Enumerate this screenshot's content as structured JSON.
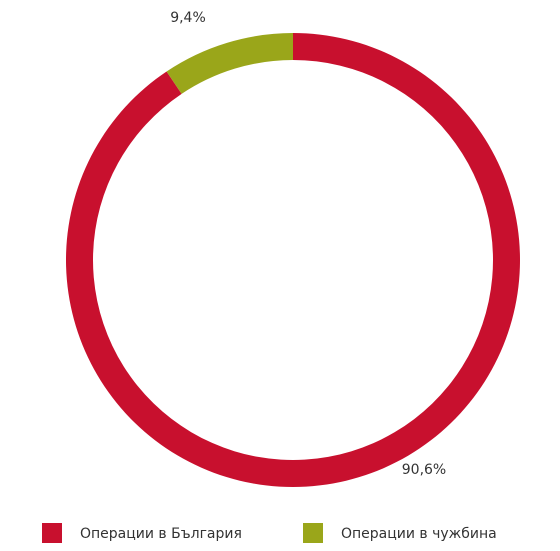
{
  "chart_data": {
    "type": "donut",
    "categories": [
      "Операции в България",
      "Операции в чужбина"
    ],
    "values": [
      90.6,
      9.4
    ],
    "value_labels": [
      "90,6%",
      "9,4%"
    ],
    "colors": [
      "#c8102e",
      "#9aa61a"
    ]
  }
}
